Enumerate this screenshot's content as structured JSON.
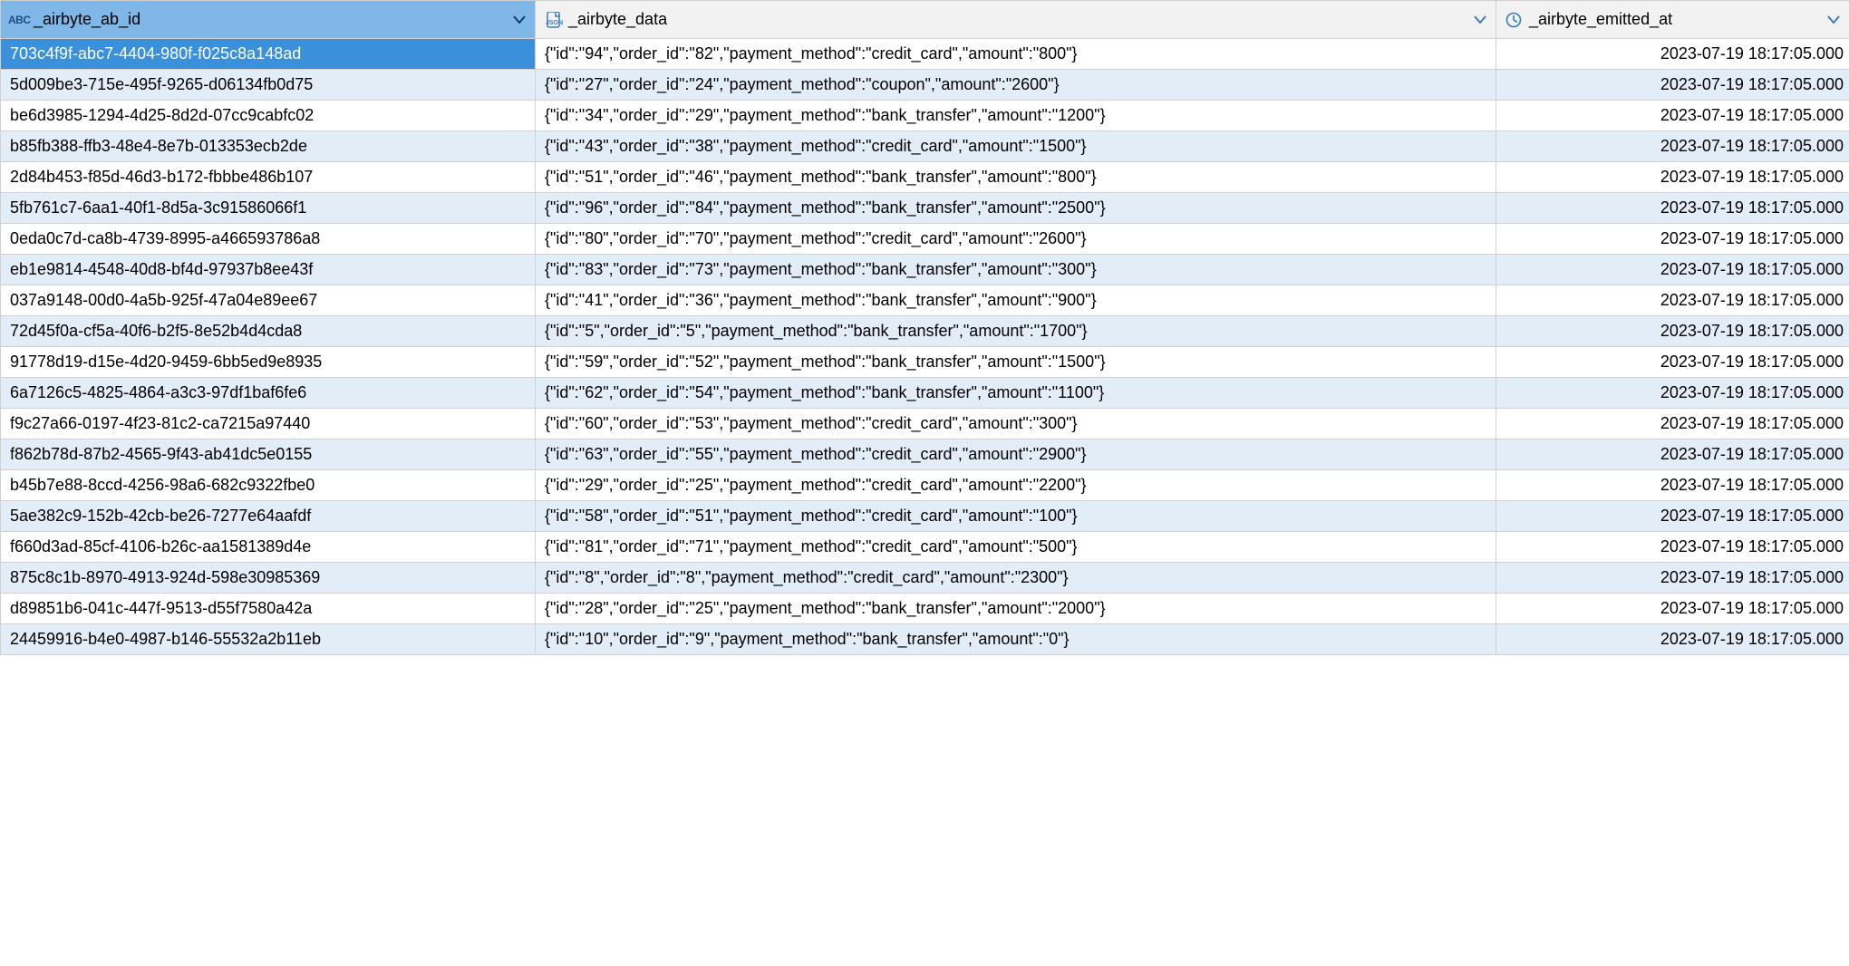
{
  "columns": [
    {
      "name": "_airbyte_ab_id",
      "type_label": "ABC",
      "icon": "text",
      "selected": true
    },
    {
      "name": "_airbyte_data",
      "type_label": "JSON",
      "icon": "json",
      "selected": false
    },
    {
      "name": "_airbyte_emitted_at",
      "type_label": "",
      "icon": "clock",
      "selected": false
    }
  ],
  "rows": [
    {
      "selected": true,
      "id": "703c4f9f-abc7-4404-980f-f025c8a148ad",
      "data": "{\"id\":\"94\",\"order_id\":\"82\",\"payment_method\":\"credit_card\",\"amount\":\"800\"}",
      "emitted": "2023-07-19 18:17:05.000"
    },
    {
      "selected": false,
      "id": "5d009be3-715e-495f-9265-d06134fb0d75",
      "data": "{\"id\":\"27\",\"order_id\":\"24\",\"payment_method\":\"coupon\",\"amount\":\"2600\"}",
      "emitted": "2023-07-19 18:17:05.000"
    },
    {
      "selected": false,
      "id": "be6d3985-1294-4d25-8d2d-07cc9cabfc02",
      "data": "{\"id\":\"34\",\"order_id\":\"29\",\"payment_method\":\"bank_transfer\",\"amount\":\"1200\"}",
      "emitted": "2023-07-19 18:17:05.000"
    },
    {
      "selected": false,
      "id": "b85fb388-ffb3-48e4-8e7b-013353ecb2de",
      "data": "{\"id\":\"43\",\"order_id\":\"38\",\"payment_method\":\"credit_card\",\"amount\":\"1500\"}",
      "emitted": "2023-07-19 18:17:05.000"
    },
    {
      "selected": false,
      "id": "2d84b453-f85d-46d3-b172-fbbbe486b107",
      "data": "{\"id\":\"51\",\"order_id\":\"46\",\"payment_method\":\"bank_transfer\",\"amount\":\"800\"}",
      "emitted": "2023-07-19 18:17:05.000"
    },
    {
      "selected": false,
      "id": "5fb761c7-6aa1-40f1-8d5a-3c91586066f1",
      "data": "{\"id\":\"96\",\"order_id\":\"84\",\"payment_method\":\"bank_transfer\",\"amount\":\"2500\"}",
      "emitted": "2023-07-19 18:17:05.000"
    },
    {
      "selected": false,
      "id": "0eda0c7d-ca8b-4739-8995-a466593786a8",
      "data": "{\"id\":\"80\",\"order_id\":\"70\",\"payment_method\":\"credit_card\",\"amount\":\"2600\"}",
      "emitted": "2023-07-19 18:17:05.000"
    },
    {
      "selected": false,
      "id": "eb1e9814-4548-40d8-bf4d-97937b8ee43f",
      "data": "{\"id\":\"83\",\"order_id\":\"73\",\"payment_method\":\"bank_transfer\",\"amount\":\"300\"}",
      "emitted": "2023-07-19 18:17:05.000"
    },
    {
      "selected": false,
      "id": "037a9148-00d0-4a5b-925f-47a04e89ee67",
      "data": "{\"id\":\"41\",\"order_id\":\"36\",\"payment_method\":\"bank_transfer\",\"amount\":\"900\"}",
      "emitted": "2023-07-19 18:17:05.000"
    },
    {
      "selected": false,
      "id": "72d45f0a-cf5a-40f6-b2f5-8e52b4d4cda8",
      "data": "{\"id\":\"5\",\"order_id\":\"5\",\"payment_method\":\"bank_transfer\",\"amount\":\"1700\"}",
      "emitted": "2023-07-19 18:17:05.000"
    },
    {
      "selected": false,
      "id": "91778d19-d15e-4d20-9459-6bb5ed9e8935",
      "data": "{\"id\":\"59\",\"order_id\":\"52\",\"payment_method\":\"bank_transfer\",\"amount\":\"1500\"}",
      "emitted": "2023-07-19 18:17:05.000"
    },
    {
      "selected": false,
      "id": "6a7126c5-4825-4864-a3c3-97df1baf6fe6",
      "data": "{\"id\":\"62\",\"order_id\":\"54\",\"payment_method\":\"bank_transfer\",\"amount\":\"1100\"}",
      "emitted": "2023-07-19 18:17:05.000"
    },
    {
      "selected": false,
      "id": "f9c27a66-0197-4f23-81c2-ca7215a97440",
      "data": "{\"id\":\"60\",\"order_id\":\"53\",\"payment_method\":\"credit_card\",\"amount\":\"300\"}",
      "emitted": "2023-07-19 18:17:05.000"
    },
    {
      "selected": false,
      "id": "f862b78d-87b2-4565-9f43-ab41dc5e0155",
      "data": "{\"id\":\"63\",\"order_id\":\"55\",\"payment_method\":\"credit_card\",\"amount\":\"2900\"}",
      "emitted": "2023-07-19 18:17:05.000"
    },
    {
      "selected": false,
      "id": "b45b7e88-8ccd-4256-98a6-682c9322fbe0",
      "data": "{\"id\":\"29\",\"order_id\":\"25\",\"payment_method\":\"credit_card\",\"amount\":\"2200\"}",
      "emitted": "2023-07-19 18:17:05.000"
    },
    {
      "selected": false,
      "id": "5ae382c9-152b-42cb-be26-7277e64aafdf",
      "data": "{\"id\":\"58\",\"order_id\":\"51\",\"payment_method\":\"credit_card\",\"amount\":\"100\"}",
      "emitted": "2023-07-19 18:17:05.000"
    },
    {
      "selected": false,
      "id": "f660d3ad-85cf-4106-b26c-aa1581389d4e",
      "data": "{\"id\":\"81\",\"order_id\":\"71\",\"payment_method\":\"credit_card\",\"amount\":\"500\"}",
      "emitted": "2023-07-19 18:17:05.000"
    },
    {
      "selected": false,
      "id": "875c8c1b-8970-4913-924d-598e30985369",
      "data": "{\"id\":\"8\",\"order_id\":\"8\",\"payment_method\":\"credit_card\",\"amount\":\"2300\"}",
      "emitted": "2023-07-19 18:17:05.000"
    },
    {
      "selected": false,
      "id": "d89851b6-041c-447f-9513-d55f7580a42a",
      "data": "{\"id\":\"28\",\"order_id\":\"25\",\"payment_method\":\"bank_transfer\",\"amount\":\"2000\"}",
      "emitted": "2023-07-19 18:17:05.000"
    },
    {
      "selected": false,
      "id": "24459916-b4e0-4987-b146-55532a2b11eb",
      "data": "{\"id\":\"10\",\"order_id\":\"9\",\"payment_method\":\"bank_transfer\",\"amount\":\"0\"}",
      "emitted": "2023-07-19 18:17:05.000"
    }
  ],
  "colors": {
    "header_bg": "#f2f2f2",
    "header_selected_bg": "#7fb7e8",
    "row_odd_bg": "#ffffff",
    "row_even_bg": "#e3edf7",
    "cell_selected_bg": "#3a90db",
    "cell_selected_fg": "#ffffff",
    "border": "#d0d0d0",
    "icon_blue": "#3a7cc2",
    "arrow_blue": "#3a7cc2"
  }
}
